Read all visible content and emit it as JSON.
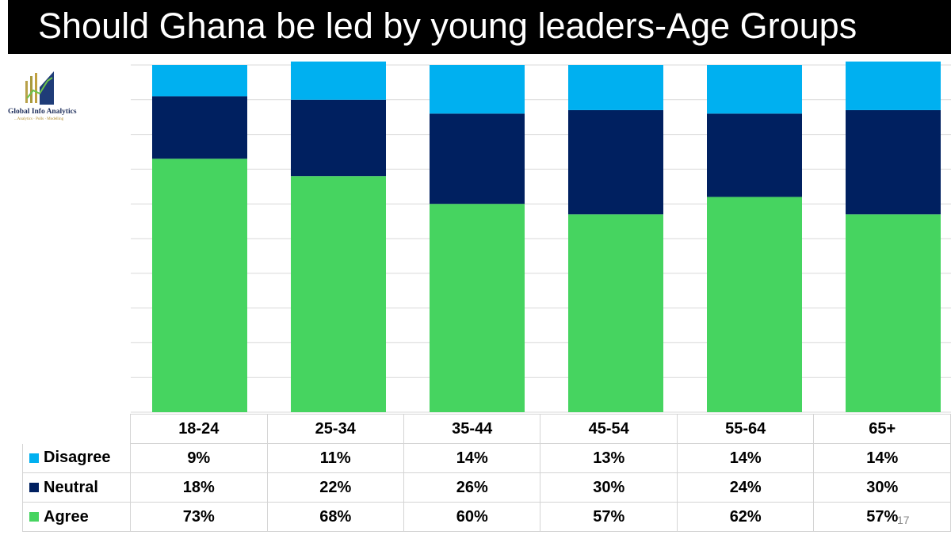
{
  "title": "Should Ghana be led by young leaders-Age Groups",
  "logo": {
    "name": "Global Info Analytics",
    "tagline": "...Analytics · Polls · Modelling"
  },
  "page_number": "17",
  "colors": {
    "disagree": "#00B0F0",
    "neutral": "#002060",
    "agree": "#46D460",
    "gridline": "#d9d9d9"
  },
  "chart_data": {
    "type": "bar",
    "stacked": true,
    "title": "Should Ghana be led by young leaders-Age Groups",
    "categories": [
      "18-24",
      "25-34",
      "35-44",
      "45-54",
      "55-64",
      "65+"
    ],
    "series": [
      {
        "name": "Disagree",
        "values": [
          9,
          11,
          14,
          13,
          14,
          14
        ],
        "labels": [
          "9%",
          "11%",
          "14%",
          "13%",
          "14%",
          "14%"
        ]
      },
      {
        "name": "Neutral",
        "values": [
          18,
          22,
          26,
          30,
          24,
          30
        ],
        "labels": [
          "18%",
          "22%",
          "26%",
          "30%",
          "24%",
          "30%"
        ]
      },
      {
        "name": "Agree",
        "values": [
          73,
          68,
          60,
          57,
          62,
          57
        ],
        "labels": [
          "73%",
          "68%",
          "60%",
          "57%",
          "62%",
          "57%"
        ]
      }
    ],
    "stack_order_bottom_to_top": [
      "Agree",
      "Neutral",
      "Disagree"
    ],
    "ylim": [
      0,
      100
    ],
    "grid": true,
    "legend": "data-table-below"
  }
}
